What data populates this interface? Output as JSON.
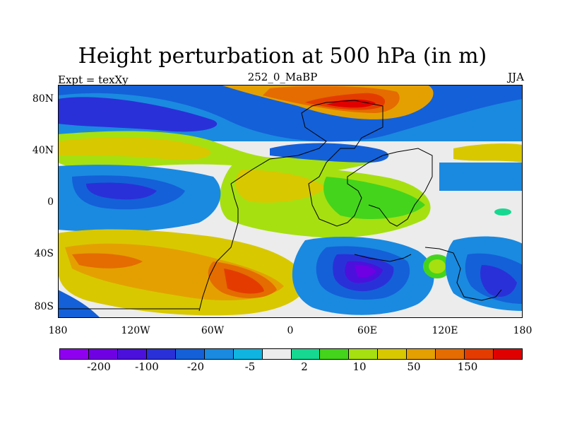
{
  "title": "Height perturbation at 500 hPa (in m)",
  "left_string": "Expt = texXy",
  "center_string": "252_0_MaBP",
  "right_string": "JJA",
  "y_ticks": [
    "80N",
    "40N",
    "0",
    "40S",
    "80S"
  ],
  "x_ticks": [
    "180",
    "120W",
    "60W",
    "0",
    "60E",
    "120E",
    "180"
  ],
  "colorbar": {
    "colors": [
      "#8f00f0",
      "#6f00e4",
      "#4b10dc",
      "#2a30d8",
      "#1460d8",
      "#1a8ae0",
      "#10b4e0",
      "#ececec",
      "#16d890",
      "#44d41c",
      "#a6e010",
      "#d8c800",
      "#e4a000",
      "#e46c00",
      "#e43c00",
      "#e00000"
    ],
    "labels": [
      "-200",
      "-100",
      "-20",
      "-5",
      "2",
      "10",
      "50",
      "150"
    ]
  }
}
